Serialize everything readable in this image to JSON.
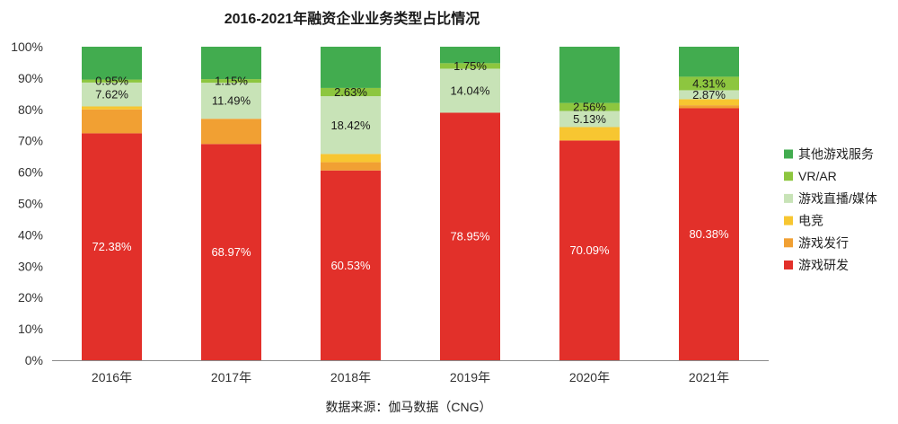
{
  "source": "数据来源：伽马数据（CNG）",
  "chart_data": {
    "type": "bar",
    "stacked": true,
    "percent": true,
    "title": "2016-2021年融资企业业务类型占比情况",
    "xlabel": "",
    "ylabel": "",
    "ylim": [
      0,
      100
    ],
    "ytick_labels": [
      "0%",
      "10%",
      "20%",
      "30%",
      "40%",
      "50%",
      "60%",
      "70%",
      "80%",
      "90%",
      "100%"
    ],
    "grid": false,
    "legend": "right",
    "categories": [
      "2016年",
      "2017年",
      "2018年",
      "2019年",
      "2020年",
      "2021年"
    ],
    "series": [
      {
        "name": "游戏研发",
        "color": "#e2302a",
        "label_color": "#ffffff",
        "show_labels": true,
        "values": [
          72.38,
          68.97,
          60.53,
          78.95,
          70.09,
          80.38
        ]
      },
      {
        "name": "游戏发行",
        "color": "#f1a033",
        "label_color": "#1a1a1a",
        "show_labels": false,
        "values": [
          7.62,
          8.05,
          2.63,
          0,
          0,
          0.96
        ]
      },
      {
        "name": "电竞",
        "color": "#f7c631",
        "label_color": "#1a1a1a",
        "show_labels": false,
        "values": [
          0.95,
          0,
          2.63,
          0,
          4.27,
          1.91
        ]
      },
      {
        "name": "游戏直播/媒体",
        "color": "#c8e3b7",
        "label_color": "#1a1a1a",
        "show_labels": true,
        "values": [
          7.62,
          11.49,
          18.42,
          14.04,
          5.13,
          2.87
        ]
      },
      {
        "name": "VR/AR",
        "color": "#8dc63f",
        "label_color": "#1a1a1a",
        "show_labels": true,
        "values": [
          0.95,
          1.15,
          2.63,
          1.75,
          2.56,
          4.31
        ]
      },
      {
        "name": "其他游戏服务",
        "color": "#42ac4f",
        "label_color": "#1a1a1a",
        "show_labels": false,
        "values": [
          10.48,
          10.34,
          13.16,
          5.26,
          17.95,
          9.57
        ]
      }
    ]
  }
}
